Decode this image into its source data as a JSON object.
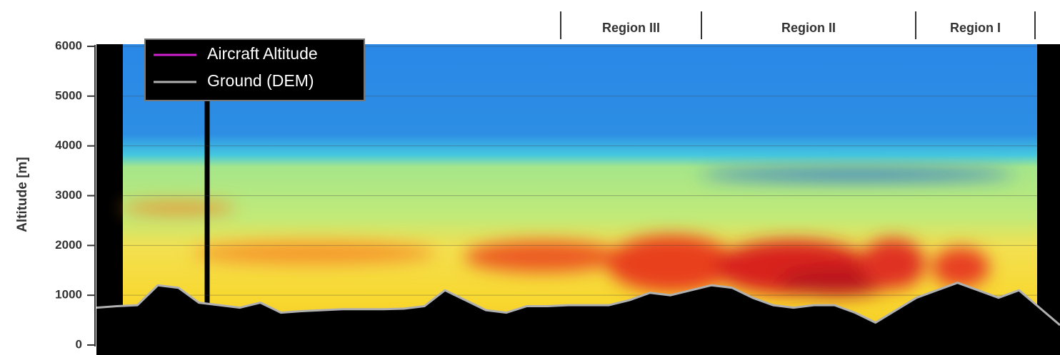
{
  "chart_data": {
    "type": "line",
    "ylabel": "Altitude [m]",
    "ylim": [
      0,
      6000
    ],
    "yticks": [
      0,
      1000,
      2000,
      3000,
      4000,
      5000,
      6000
    ],
    "grid": true,
    "annotations": [
      "Region III",
      "Region II",
      "Region I"
    ],
    "categories": [
      null,
      null,
      null,
      null,
      null,
      null,
      null,
      null,
      null,
      null,
      null,
      null,
      null,
      null,
      null,
      null,
      null,
      null,
      null,
      null,
      null,
      null,
      null,
      null,
      null,
      null,
      null,
      null,
      null,
      null,
      null,
      null,
      null,
      null,
      null,
      null,
      null,
      null,
      null,
      null,
      null,
      null,
      null,
      null,
      null,
      null,
      null,
      null
    ],
    "series": [
      {
        "name": "Aircraft Altitude",
        "color": "#d020d0"
      },
      {
        "name": "Ground (DEM)",
        "color": "#b0b0b0",
        "values": [
          750,
          780,
          800,
          1200,
          1150,
          850,
          800,
          750,
          850,
          650,
          680,
          700,
          720,
          720,
          720,
          730,
          780,
          1100,
          900,
          700,
          650,
          780,
          780,
          800,
          800,
          800,
          900,
          1050,
          1000,
          1100,
          1200,
          1150,
          950,
          800,
          750,
          800,
          800,
          650,
          450,
          700,
          950,
          1100,
          1250,
          1100,
          950,
          1100,
          750,
          400
        ]
      }
    ]
  }
}
